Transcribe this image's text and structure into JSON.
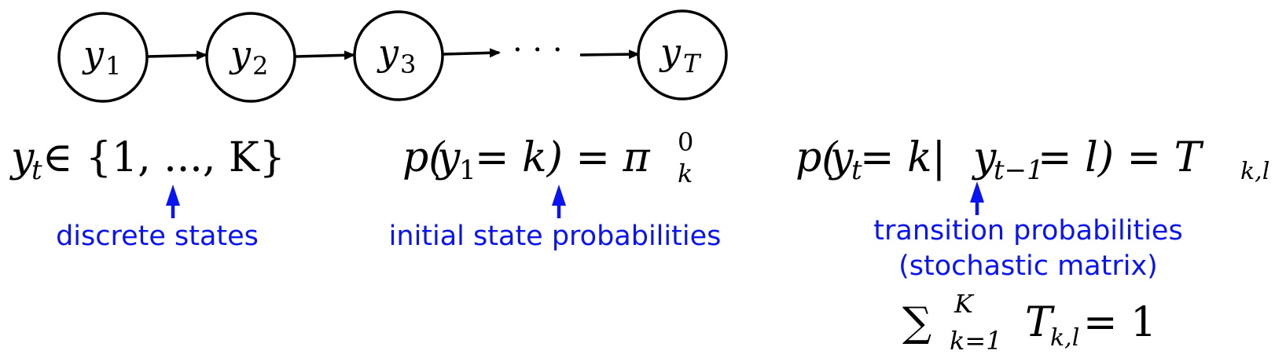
{
  "chain": {
    "nodes": [
      {
        "base": "y",
        "sub": "1"
      },
      {
        "base": "y",
        "sub": "2"
      },
      {
        "base": "y",
        "sub": "3"
      },
      {
        "base": "y",
        "sub": "T"
      }
    ],
    "ellipsis": "· · ·"
  },
  "states_eq": {
    "lhs_base": "y",
    "lhs_sub": "t",
    "rest": " ∈ {1, ..., K}",
    "annotation": "discrete states"
  },
  "initial_eq": {
    "prefix": "p(",
    "y_base": "y",
    "y_sub": "1",
    "mid": " = k) = π",
    "pi_sup": "0",
    "pi_sub": "k",
    "annotation": "initial state probabilities"
  },
  "transition_eq": {
    "prefix": "p(",
    "y_base": "y",
    "y_sub": "t",
    "mid1": " = k|",
    "y2_base": "y",
    "y2_sub": "t−1",
    "mid2": " = l) = T",
    "t_sub": "k,l",
    "annotation_line1": "transition probabilities",
    "annotation_line2": "(stochastic matrix)"
  },
  "sum_eq": {
    "sigma": "∑",
    "sup": "K",
    "sub": "k=1",
    "t_base": "T",
    "t_sub": "k,l",
    "rhs": " = 1"
  }
}
